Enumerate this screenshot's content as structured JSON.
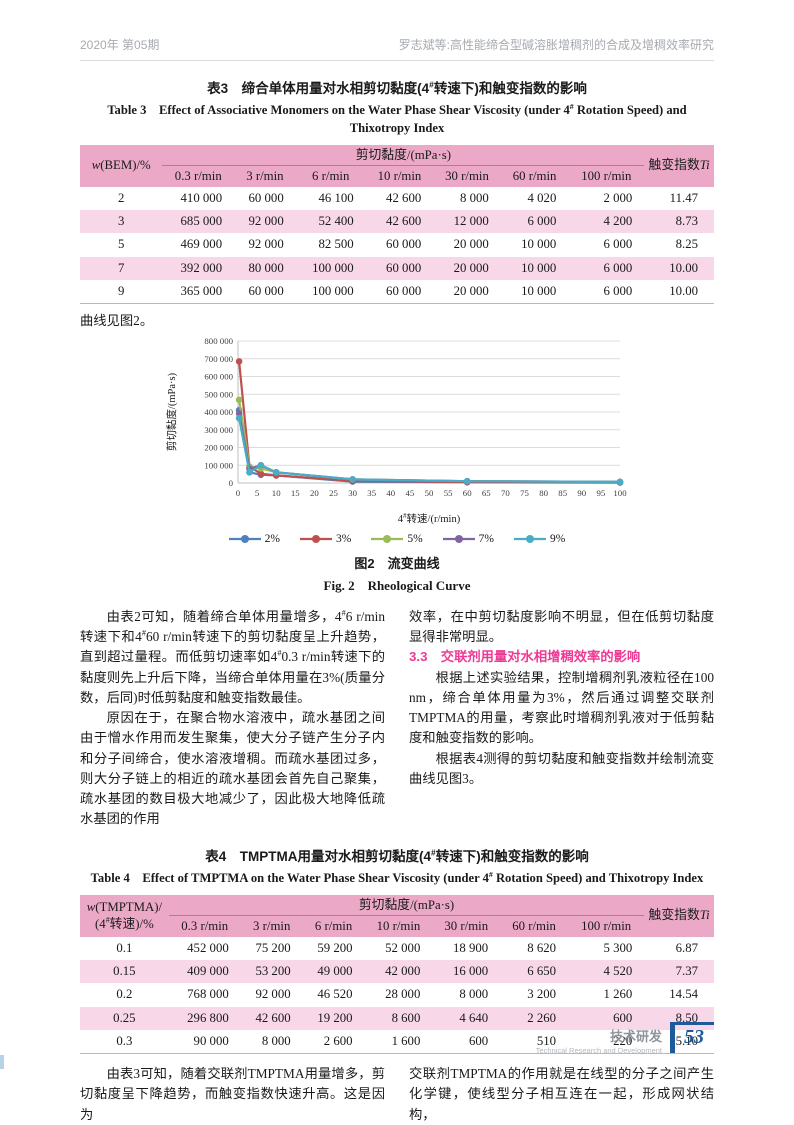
{
  "header": {
    "left": "2020年 第05期",
    "right": "罗志斌等:高性能缔合型碱溶胀增稠剂的合成及增稠效率研究"
  },
  "colors": {
    "table_header_pink": "#eba9c7",
    "table_row_alt_pink": "#f8d7e8",
    "section_heading_magenta": "#ee3a94",
    "page_number_blue": "#1d5a9b"
  },
  "table3": {
    "caption_zh": "表3　缔合单体用量对水相剪切黏度(4#转速下)和触变指数的影响",
    "caption_en": "Table 3　Effect of Associative Monomers on the Water Phase Shear Viscosity (under 4# Rotation Speed) and Thixotropy Index",
    "col1_header": {
      "italic": "w",
      "rest": "(BEM)/%"
    },
    "group_header": "剪切黏度/(mPa·s)",
    "speed_headers": [
      "0.3 r/min",
      "3 r/min",
      "6 r/min",
      "10 r/min",
      "30 r/min",
      "60 r/min",
      "100 r/min"
    ],
    "last_header": {
      "text": "触变指数",
      "italic": "Ti"
    },
    "rows": [
      [
        "2",
        "410 000",
        "60 000",
        "46 100",
        "42 600",
        "8 000",
        "4 020",
        "2 000",
        "11.47"
      ],
      [
        "3",
        "685 000",
        "92 000",
        "52 400",
        "42 600",
        "12 000",
        "6 000",
        "4 200",
        "8.73"
      ],
      [
        "5",
        "469 000",
        "92 000",
        "82 500",
        "60 000",
        "20 000",
        "10 000",
        "6 000",
        "8.25"
      ],
      [
        "7",
        "392 000",
        "80 000",
        "100 000",
        "60 000",
        "20 000",
        "10 000",
        "6 000",
        "10.00"
      ],
      [
        "9",
        "365 000",
        "60 000",
        "100 000",
        "60 000",
        "20 000",
        "10 000",
        "6 000",
        "10.00"
      ]
    ]
  },
  "curve_note": "曲线见图2。",
  "chart_data": {
    "type": "line",
    "title": "",
    "xlabel": "4#转速/(r/min)",
    "ylabel": "剪切黏度/(mPa·s)",
    "x": [
      0.3,
      3,
      6,
      10,
      30,
      60,
      100
    ],
    "series": [
      {
        "name": "2%",
        "color": "#4F81BD",
        "values": [
          410000,
          60000,
          46100,
          42600,
          8000,
          4020,
          2000
        ]
      },
      {
        "name": "3%",
        "color": "#C0504D",
        "values": [
          685000,
          92000,
          52400,
          42600,
          12000,
          6000,
          4200
        ]
      },
      {
        "name": "5%",
        "color": "#9BBB59",
        "values": [
          469000,
          92000,
          82500,
          60000,
          20000,
          10000,
          6000
        ]
      },
      {
        "name": "7%",
        "color": "#8064A2",
        "values": [
          392000,
          80000,
          100000,
          60000,
          20000,
          10000,
          6000
        ]
      },
      {
        "name": "9%",
        "color": "#4BACC6",
        "values": [
          365000,
          60000,
          100000,
          60000,
          20000,
          10000,
          6000
        ]
      }
    ],
    "xlim": [
      0,
      100
    ],
    "xtick_step": 5,
    "ylim": [
      0,
      800000
    ],
    "ytick_step": 100000,
    "grid": true,
    "legend_position": "bottom"
  },
  "figure2": {
    "caption_zh": "图2　流变曲线",
    "caption_en": "Fig. 2　Rheological Curve"
  },
  "body_top": {
    "left_p1": "由表2可知，随着缔合单体用量增多，4#6 r/min转速下和4#60 r/min转速下的剪切黏度呈上升趋势，直到超过量程。而低剪切速率如4#0.3 r/min转速下的黏度则先上升后下降，当缔合单体用量在3%(质量分数，后同)时低剪黏度和触变指数最佳。",
    "left_p2": "原因在于，在聚合物水溶液中，疏水基团之间由于憎水作用而发生聚集，使大分子链产生分子内和分子间缔合，使水溶液增稠。而疏水基团过多，则大分子链上的相近的疏水基团会首先自己聚集，疏水基团的数目极大地减少了，因此极大地降低疏水基团的作用",
    "right_p1": "效率，在中剪切黏度影响不明显，但在低剪切黏度显得非常明显。",
    "section_heading": "3.3　交联剂用量对水相增稠效率的影响",
    "right_p2": "根据上述实验结果，控制增稠剂乳液粒径在100 nm，缔合单体用量为3%，然后通过调整交联剂TMPTMA的用量，考察此时增稠剂乳液对于低剪黏度和触变指数的影响。",
    "right_p3": "根据表4测得的剪切黏度和触变指数并绘制流变曲线见图3。"
  },
  "table4": {
    "caption_zh": "表4　TMPTMA用量对水相剪切黏度(4#转速下)和触变指数的影响",
    "caption_en": "Table 4　Effect of TMPTMA on the Water Phase Shear Viscosity (under 4# Rotation Speed) and Thixotropy Index",
    "col1_header_line1": {
      "italic": "w",
      "rest": "(TMPTMA)/"
    },
    "col1_header_line2": "(4#转速)/%",
    "group_header": "剪切黏度/(mPa·s)",
    "speed_headers": [
      "0.3 r/min",
      "3 r/min",
      "6 r/min",
      "10 r/min",
      "30 r/min",
      "60 r/min",
      "100 r/min"
    ],
    "last_header": {
      "text": "触变指数",
      "italic": "Ti"
    },
    "rows": [
      [
        "0.1",
        "452 000",
        "75 200",
        "59 200",
        "52 000",
        "18 900",
        "8 620",
        "5 300",
        "6.87"
      ],
      [
        "0.15",
        "409 000",
        "53 200",
        "49 000",
        "42 000",
        "16 000",
        "6 650",
        "4 520",
        "7.37"
      ],
      [
        "0.2",
        "768 000",
        "92 000",
        "46 520",
        "28 000",
        "8 000",
        "3 200",
        "1 260",
        "14.54"
      ],
      [
        "0.25",
        "296 800",
        "42 600",
        "19 200",
        "8 600",
        "4 640",
        "2 260",
        "600",
        "8.50"
      ],
      [
        "0.3",
        "90 000",
        "8 000",
        "2 600",
        "1 600",
        "600",
        "510",
        "220",
        "5.10"
      ]
    ]
  },
  "body_bottom": {
    "left_p1": "由表3可知，随着交联剂TMPTMA用量增多，剪切黏度呈下降趋势，而触变指数快速升高。这是因为",
    "right_p1": "交联剂TMPTMA的作用就是在线型的分子之间产生化学键，使线型分子相互连在一起，形成网状结构，"
  },
  "footer": {
    "section_zh": "技术研发",
    "section_en": "Technical Research and Development",
    "page_number": "53"
  }
}
